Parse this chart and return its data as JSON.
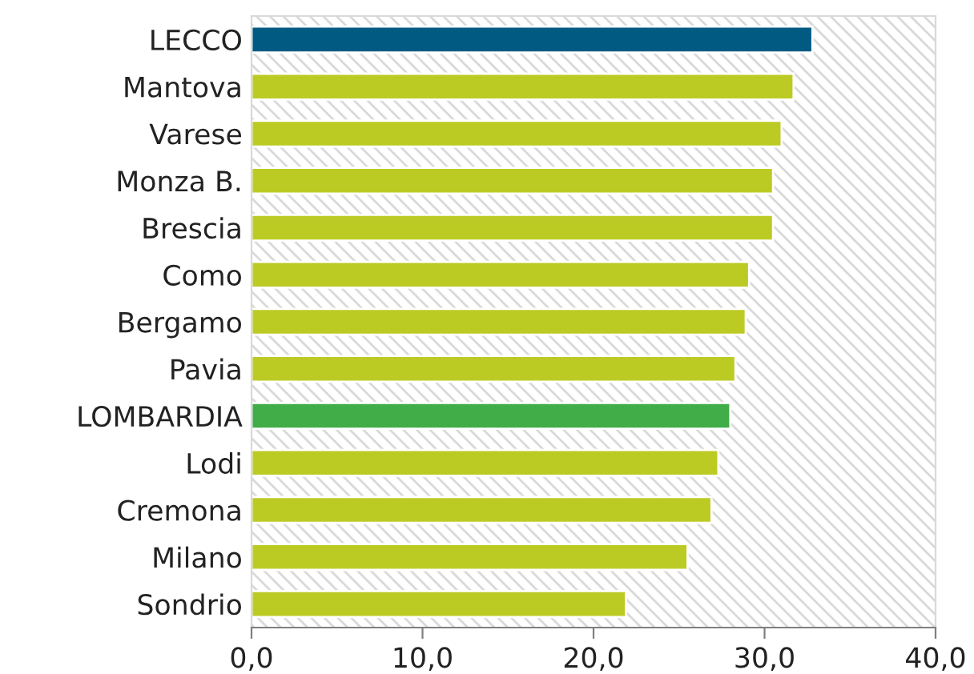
{
  "chart_data": {
    "type": "bar",
    "orientation": "horizontal",
    "categories": [
      "LECCO",
      "Mantova",
      "Varese",
      "Monza B.",
      "Brescia",
      "Como",
      "Bergamo",
      "Pavia",
      "LOMBARDIA",
      "Lodi",
      "Cremona",
      "Milano",
      "Sondrio"
    ],
    "values": [
      32.8,
      31.7,
      31.0,
      30.5,
      30.5,
      29.1,
      28.9,
      28.3,
      28.0,
      27.3,
      26.9,
      25.5,
      21.9
    ],
    "colors": [
      "#005a82",
      "#bccb24",
      "#bccb24",
      "#bccb24",
      "#bccb24",
      "#bccb24",
      "#bccb24",
      "#bccb24",
      "#41ad49",
      "#bccb24",
      "#bccb24",
      "#bccb24",
      "#bccb24"
    ],
    "xlim": [
      0,
      40
    ],
    "xticks": [
      {
        "value": 0,
        "label": "0,0"
      },
      {
        "value": 10,
        "label": "10,0"
      },
      {
        "value": 20,
        "label": "20,0"
      },
      {
        "value": 30,
        "label": "30,0"
      },
      {
        "value": 40,
        "label": "40,0"
      }
    ],
    "grid": false,
    "legend": false
  }
}
